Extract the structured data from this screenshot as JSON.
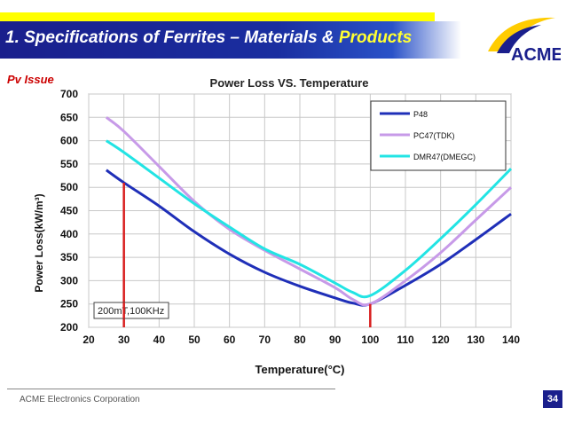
{
  "slide": {
    "title_main": "1. Specifications of Ferrites – Materials & ",
    "title_highlight": "Products",
    "subtitle": "Pv Issue",
    "logo_text": "ACME",
    "footer": "ACME Electronics Corporation",
    "page_number": "34"
  },
  "chart_data": {
    "type": "line",
    "title": "Power Loss VS. Temperature",
    "xlabel": "Temperature(°C)",
    "ylabel": "Power Loss(kW/m³)",
    "xlim": [
      20,
      140
    ],
    "ylim": [
      200,
      700
    ],
    "xticks": [
      20,
      30,
      40,
      50,
      60,
      70,
      80,
      90,
      100,
      110,
      120,
      130,
      140
    ],
    "yticks": [
      200,
      250,
      300,
      350,
      400,
      450,
      500,
      550,
      600,
      650,
      700
    ],
    "grid": true,
    "legend_position": "top-right",
    "annotation": "200mT,100KHz",
    "markers": [
      30,
      100
    ],
    "series": [
      {
        "name": "P48",
        "color": "#1f2fb8",
        "x": [
          25,
          30,
          40,
          50,
          60,
          70,
          80,
          90,
          95,
          100,
          110,
          120,
          130,
          140
        ],
        "y": [
          537,
          510,
          460,
          405,
          357,
          318,
          288,
          263,
          252,
          250,
          290,
          335,
          388,
          443
        ]
      },
      {
        "name": "PC47(TDK)",
        "color": "#c79ae8",
        "x": [
          25,
          30,
          40,
          50,
          60,
          70,
          80,
          90,
          95,
          100,
          110,
          120,
          130,
          140
        ],
        "y": [
          650,
          620,
          545,
          470,
          410,
          365,
          325,
          285,
          260,
          250,
          300,
          360,
          430,
          500
        ]
      },
      {
        "name": "DMR47(DMEGC)",
        "color": "#22e4e4",
        "x": [
          25,
          30,
          40,
          50,
          60,
          70,
          80,
          90,
          95,
          100,
          110,
          120,
          130,
          140
        ],
        "y": [
          600,
          575,
          520,
          465,
          415,
          368,
          335,
          295,
          275,
          268,
          322,
          390,
          463,
          540
        ]
      }
    ]
  }
}
